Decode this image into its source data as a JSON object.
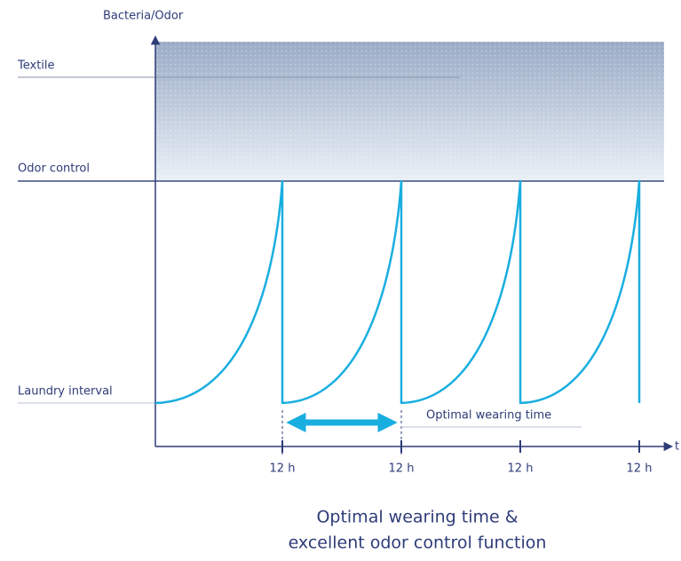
{
  "diagram": {
    "y_axis_label": "Bacteria/Odor",
    "x_axis_label": "t",
    "levels": {
      "textile": "Textile",
      "odor_control": "Odor control",
      "laundry_interval": "Laundry interval"
    },
    "x_ticks": [
      "12 h",
      "12 h",
      "12 h",
      "12 h"
    ],
    "annotation": "Optimal wearing time",
    "caption": [
      "Optimal wearing time &",
      "excellent odor control function"
    ]
  }
}
